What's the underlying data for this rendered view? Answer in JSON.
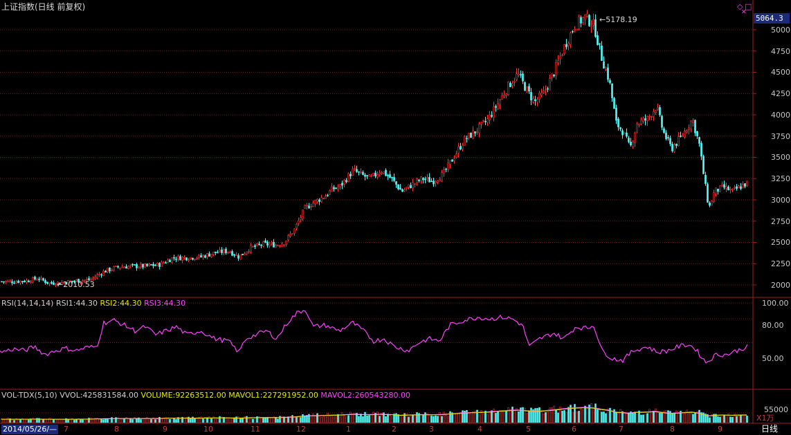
{
  "header": {
    "title": "上证指数(日线 前复权)",
    "current_price": "5064.3",
    "peak_label": "5178.19",
    "trough_label": "2010.53"
  },
  "icons": {
    "diamond": "◇",
    "box": "□",
    "collapse": "✕"
  },
  "price_axis": [
    "5000",
    "4750",
    "4500",
    "4250",
    "4000",
    "3750",
    "3500",
    "3250",
    "3000",
    "2750",
    "2500",
    "2250",
    "2000"
  ],
  "rsi_panel": {
    "name": "RSI(14,14,14)",
    "rsi1_label": "RSI1:",
    "rsi1_value": "44.30",
    "rsi2_label": "RSI2:",
    "rsi2_value": "44.30",
    "rsi3_label": "RSI3:",
    "rsi3_value": "44.30",
    "axis": [
      "100.00",
      "80.00",
      "50.00"
    ]
  },
  "vol_panel": {
    "name": "VOL-TDX(5,10)",
    "vvol_label": "VVOL:",
    "vvol_value": "425831584.00",
    "volume_label": "VOLUME:",
    "volume_value": "92263512.00",
    "mavol1_label": "MAVOL1:",
    "mavol1_value": "227291952.00",
    "mavol2_label": "MAVOL2:",
    "mavol2_value": "260543280.00",
    "axis": "55000",
    "unit": "X1万"
  },
  "x_axis": {
    "start_date": "2014/05/26/—",
    "months": [
      "7",
      "8",
      "9",
      "10",
      "11",
      "12",
      "1",
      "2",
      "3",
      "4",
      "5",
      "6",
      "7",
      "8",
      "9"
    ]
  },
  "period": "日线",
  "colors": {
    "up": "#ff3232",
    "down": "#54fcfc",
    "grid": "#7a1a1a",
    "rsi_line": "#ff40ff",
    "vol_ma": "#ff40ff"
  },
  "chart_data": {
    "type": "candlestick",
    "title": "上证指数(日线 前复权)",
    "price_range": [
      1900,
      5250
    ],
    "peak": 5178.19,
    "trough": 2010.53,
    "close_path": [
      [
        0,
        2040
      ],
      [
        20,
        2040
      ],
      [
        40,
        2050
      ],
      [
        55,
        2080
      ],
      [
        70,
        2020
      ],
      [
        90,
        2030
      ],
      [
        110,
        2050
      ],
      [
        130,
        2060
      ],
      [
        150,
        2160
      ],
      [
        170,
        2210
      ],
      [
        190,
        2220
      ],
      [
        210,
        2220
      ],
      [
        230,
        2240
      ],
      [
        250,
        2320
      ],
      [
        270,
        2320
      ],
      [
        290,
        2330
      ],
      [
        310,
        2380
      ],
      [
        330,
        2400
      ],
      [
        345,
        2330
      ],
      [
        360,
        2430
      ],
      [
        380,
        2480
      ],
      [
        400,
        2470
      ],
      [
        410,
        2500
      ],
      [
        425,
        2650
      ],
      [
        440,
        2900
      ],
      [
        455,
        2980
      ],
      [
        470,
        3050
      ],
      [
        480,
        3130
      ],
      [
        490,
        3150
      ],
      [
        500,
        3250
      ],
      [
        510,
        3350
      ],
      [
        520,
        3300
      ],
      [
        535,
        3250
      ],
      [
        550,
        3350
      ],
      [
        565,
        3250
      ],
      [
        580,
        3100
      ],
      [
        595,
        3180
      ],
      [
        610,
        3250
      ],
      [
        625,
        3220
      ],
      [
        640,
        3300
      ],
      [
        655,
        3500
      ],
      [
        670,
        3700
      ],
      [
        690,
        3830
      ],
      [
        705,
        3950
      ],
      [
        720,
        4150
      ],
      [
        735,
        4350
      ],
      [
        748,
        4480
      ],
      [
        760,
        4300
      ],
      [
        772,
        4150
      ],
      [
        785,
        4250
      ],
      [
        800,
        4500
      ],
      [
        815,
        4800
      ],
      [
        830,
        5050
      ],
      [
        845,
        5150
      ],
      [
        858,
        5050
      ],
      [
        868,
        4700
      ],
      [
        880,
        4400
      ],
      [
        890,
        3900
      ],
      [
        900,
        3800
      ],
      [
        910,
        3600
      ],
      [
        920,
        3900
      ],
      [
        935,
        3950
      ],
      [
        948,
        4100
      ],
      [
        958,
        3800
      ],
      [
        970,
        3600
      ],
      [
        985,
        3750
      ],
      [
        1000,
        3950
      ],
      [
        1010,
        3650
      ],
      [
        1018,
        3200
      ],
      [
        1024,
        2900
      ],
      [
        1032,
        3100
      ],
      [
        1045,
        3150
      ],
      [
        1058,
        3100
      ],
      [
        1068,
        3150
      ],
      [
        1080,
        3200
      ]
    ],
    "rsi_path": [
      [
        0,
        38
      ],
      [
        20,
        42
      ],
      [
        35,
        40
      ],
      [
        50,
        45
      ],
      [
        65,
        35
      ],
      [
        80,
        40
      ],
      [
        95,
        43
      ],
      [
        110,
        40
      ],
      [
        125,
        44
      ],
      [
        140,
        45
      ],
      [
        150,
        75
      ],
      [
        165,
        78
      ],
      [
        180,
        72
      ],
      [
        195,
        65
      ],
      [
        210,
        70
      ],
      [
        225,
        60
      ],
      [
        240,
        65
      ],
      [
        255,
        70
      ],
      [
        270,
        60
      ],
      [
        290,
        65
      ],
      [
        310,
        55
      ],
      [
        330,
        52
      ],
      [
        345,
        38
      ],
      [
        355,
        55
      ],
      [
        370,
        60
      ],
      [
        385,
        65
      ],
      [
        400,
        55
      ],
      [
        415,
        75
      ],
      [
        430,
        88
      ],
      [
        442,
        92
      ],
      [
        452,
        70
      ],
      [
        470,
        72
      ],
      [
        490,
        65
      ],
      [
        510,
        75
      ],
      [
        525,
        65
      ],
      [
        540,
        52
      ],
      [
        555,
        55
      ],
      [
        570,
        45
      ],
      [
        590,
        40
      ],
      [
        605,
        50
      ],
      [
        620,
        55
      ],
      [
        635,
        52
      ],
      [
        650,
        72
      ],
      [
        670,
        78
      ],
      [
        690,
        82
      ],
      [
        710,
        80
      ],
      [
        725,
        82
      ],
      [
        740,
        80
      ],
      [
        755,
        72
      ],
      [
        765,
        45
      ],
      [
        780,
        55
      ],
      [
        800,
        62
      ],
      [
        815,
        55
      ],
      [
        832,
        70
      ],
      [
        848,
        68
      ],
      [
        858,
        72
      ],
      [
        870,
        40
      ],
      [
        885,
        30
      ],
      [
        900,
        28
      ],
      [
        915,
        40
      ],
      [
        935,
        45
      ],
      [
        950,
        38
      ],
      [
        965,
        40
      ],
      [
        980,
        45
      ],
      [
        995,
        48
      ],
      [
        1005,
        42
      ],
      [
        1020,
        25
      ],
      [
        1035,
        35
      ],
      [
        1050,
        35
      ],
      [
        1065,
        40
      ],
      [
        1080,
        45
      ]
    ],
    "rsi_range": [
      0,
      100
    ]
  }
}
